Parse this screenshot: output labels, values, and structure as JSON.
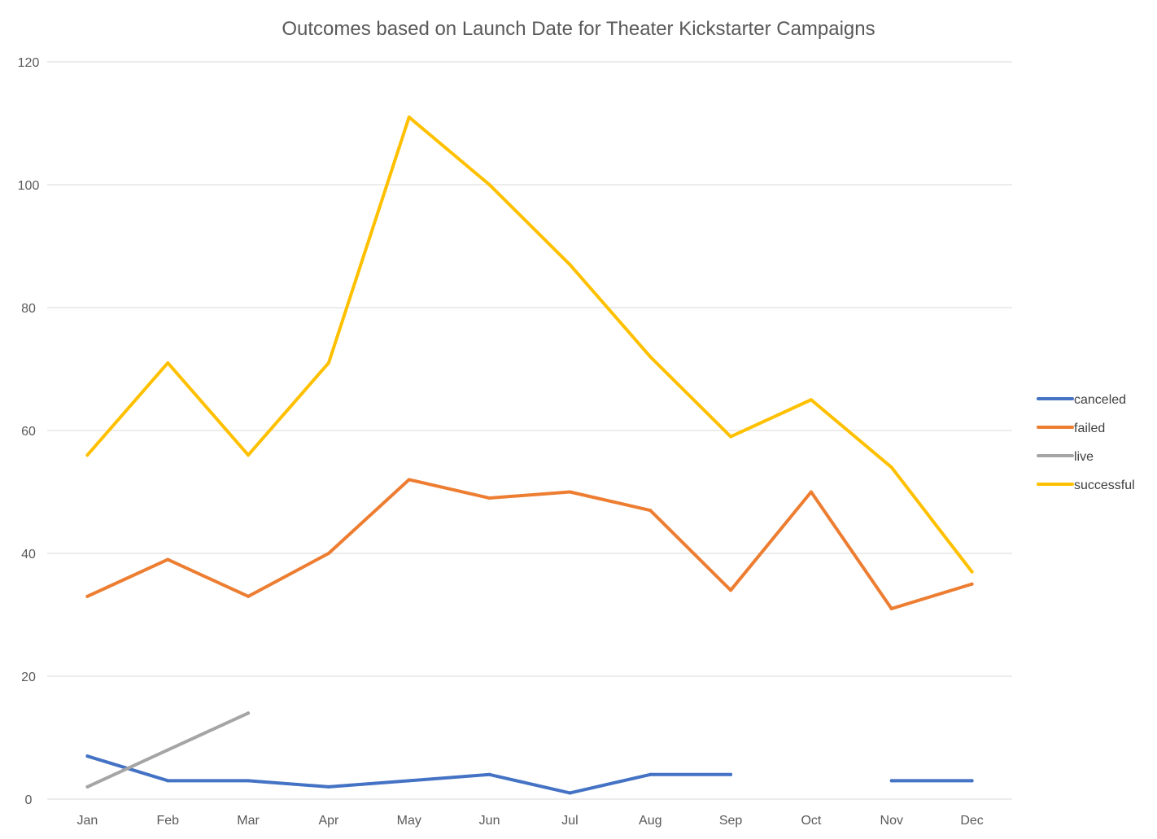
{
  "chart_data": {
    "type": "line",
    "title": "Outcomes based on Launch Date for Theater Kickstarter Campaigns",
    "xlabel": "",
    "ylabel": "",
    "categories": [
      "Jan",
      "Feb",
      "Mar",
      "Apr",
      "May",
      "Jun",
      "Jul",
      "Aug",
      "Sep",
      "Oct",
      "Nov",
      "Dec"
    ],
    "ylim": [
      0,
      120
    ],
    "yticks": [
      0,
      20,
      40,
      60,
      80,
      100,
      120
    ],
    "grid": true,
    "legend_position": "right",
    "series": [
      {
        "name": "canceled",
        "color": "#4472C4",
        "values": [
          7,
          3,
          3,
          2,
          3,
          4,
          1,
          4,
          4,
          null,
          3,
          3
        ]
      },
      {
        "name": "failed",
        "color": "#ED7D31",
        "values": [
          33,
          39,
          33,
          40,
          52,
          49,
          50,
          47,
          34,
          50,
          31,
          35
        ]
      },
      {
        "name": "live",
        "color": "#A5A5A5",
        "values": [
          2,
          8,
          14,
          null,
          null,
          null,
          null,
          null,
          null,
          null,
          null,
          null
        ]
      },
      {
        "name": "successful",
        "color": "#FFC000",
        "values": [
          56,
          71,
          56,
          71,
          111,
          100,
          87,
          72,
          59,
          65,
          54,
          37
        ]
      }
    ]
  }
}
